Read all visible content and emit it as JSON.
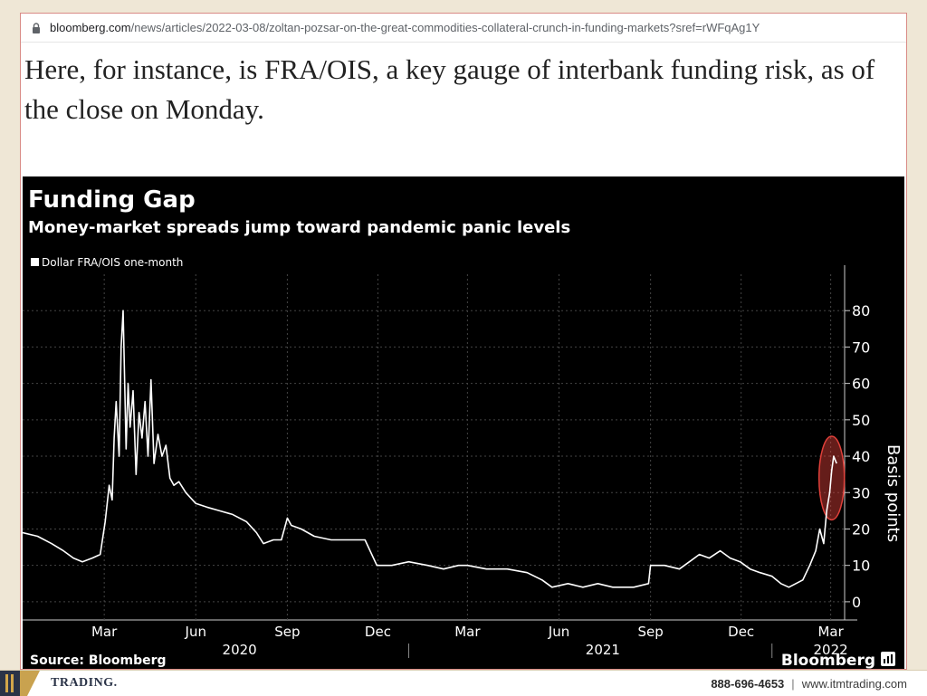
{
  "browser": {
    "url_host": "bloomberg.com",
    "url_path": "/news/articles/2022-03-08/zoltan-pozsar-on-the-great-commodities-collateral-crunch-in-funding-markets?sref=rWFqAg1Y"
  },
  "article": {
    "lead_text": "Here, for instance, is FRA/OIS, a key gauge of interbank funding risk, as of the close on Monday."
  },
  "chart_data": {
    "type": "line",
    "title": "Funding Gap",
    "subtitle": "Money-market spreads jump toward pandemic panic levels",
    "legend": [
      "Dollar FRA/OIS one-month"
    ],
    "ylabel": "Basis points",
    "ylim": [
      -5,
      90
    ],
    "yticks": [
      0,
      10,
      20,
      30,
      40,
      50,
      60,
      70,
      80
    ],
    "x_tick_labels": [
      "Mar",
      "Jun",
      "Sep",
      "Dec",
      "Mar",
      "Jun",
      "Sep",
      "Dec",
      "Mar"
    ],
    "x_tick_dates": [
      "2020-03-01",
      "2020-06-01",
      "2020-09-01",
      "2020-12-01",
      "2021-03-01",
      "2021-06-01",
      "2021-09-01",
      "2021-12-01",
      "2022-03-01"
    ],
    "year_labels": [
      "2020",
      "2021",
      "2022"
    ],
    "year_label_dates": [
      "2020-07-15",
      "2021-07-15",
      "2022-03-01"
    ],
    "year_separators": [
      "2021-01-01",
      "2022-01-01"
    ],
    "xlim": [
      "2019-12-10",
      "2022-03-15"
    ],
    "source": "Source: Bloomberg",
    "brand": "Bloomberg",
    "line_color": "#ffffff",
    "highlight_color": "#e0403a",
    "highlight_range": [
      "2022-02-25",
      "2022-03-07"
    ],
    "series": [
      {
        "name": "Dollar FRA/OIS one-month",
        "points": [
          [
            "2019-12-10",
            19
          ],
          [
            "2019-12-25",
            18
          ],
          [
            "2020-01-08",
            16
          ],
          [
            "2020-01-20",
            14
          ],
          [
            "2020-01-30",
            12
          ],
          [
            "2020-02-08",
            11
          ],
          [
            "2020-02-18",
            12
          ],
          [
            "2020-02-26",
            13
          ],
          [
            "2020-03-02",
            22
          ],
          [
            "2020-03-06",
            32
          ],
          [
            "2020-03-09",
            28
          ],
          [
            "2020-03-11",
            45
          ],
          [
            "2020-03-13",
            55
          ],
          [
            "2020-03-16",
            40
          ],
          [
            "2020-03-18",
            70
          ],
          [
            "2020-03-20",
            80
          ],
          [
            "2020-03-23",
            42
          ],
          [
            "2020-03-25",
            60
          ],
          [
            "2020-03-27",
            48
          ],
          [
            "2020-03-30",
            58
          ],
          [
            "2020-04-02",
            35
          ],
          [
            "2020-04-05",
            52
          ],
          [
            "2020-04-08",
            45
          ],
          [
            "2020-04-11",
            55
          ],
          [
            "2020-04-14",
            40
          ],
          [
            "2020-04-17",
            61
          ],
          [
            "2020-04-20",
            38
          ],
          [
            "2020-04-24",
            46
          ],
          [
            "2020-04-28",
            40
          ],
          [
            "2020-05-02",
            43
          ],
          [
            "2020-05-06",
            34
          ],
          [
            "2020-05-10",
            32
          ],
          [
            "2020-05-15",
            33
          ],
          [
            "2020-05-22",
            30
          ],
          [
            "2020-06-01",
            27
          ],
          [
            "2020-06-12",
            26
          ],
          [
            "2020-06-25",
            25
          ],
          [
            "2020-07-08",
            24
          ],
          [
            "2020-07-22",
            22
          ],
          [
            "2020-08-01",
            19
          ],
          [
            "2020-08-08",
            16
          ],
          [
            "2020-08-18",
            17
          ],
          [
            "2020-08-26",
            17
          ],
          [
            "2020-09-01",
            23
          ],
          [
            "2020-09-05",
            21
          ],
          [
            "2020-09-15",
            20
          ],
          [
            "2020-09-28",
            18
          ],
          [
            "2020-10-15",
            17
          ],
          [
            "2020-11-01",
            17
          ],
          [
            "2020-11-18",
            17
          ],
          [
            "2020-11-30",
            10
          ],
          [
            "2020-12-15",
            10
          ],
          [
            "2021-01-01",
            11
          ],
          [
            "2021-01-20",
            10
          ],
          [
            "2021-02-05",
            9
          ],
          [
            "2021-02-20",
            10
          ],
          [
            "2021-03-01",
            10
          ],
          [
            "2021-03-20",
            9
          ],
          [
            "2021-04-10",
            9
          ],
          [
            "2021-04-30",
            8
          ],
          [
            "2021-05-15",
            6
          ],
          [
            "2021-05-25",
            4
          ],
          [
            "2021-06-10",
            5
          ],
          [
            "2021-06-25",
            4
          ],
          [
            "2021-07-10",
            5
          ],
          [
            "2021-07-25",
            4
          ],
          [
            "2021-08-15",
            4
          ],
          [
            "2021-08-30",
            5
          ],
          [
            "2021-09-01",
            10
          ],
          [
            "2021-09-15",
            10
          ],
          [
            "2021-09-30",
            9
          ],
          [
            "2021-10-10",
            11
          ],
          [
            "2021-10-20",
            13
          ],
          [
            "2021-10-30",
            12
          ],
          [
            "2021-11-10",
            14
          ],
          [
            "2021-11-20",
            12
          ],
          [
            "2021-11-30",
            11
          ],
          [
            "2021-12-10",
            9
          ],
          [
            "2021-12-20",
            8
          ],
          [
            "2022-01-01",
            7
          ],
          [
            "2022-01-10",
            5
          ],
          [
            "2022-01-18",
            4
          ],
          [
            "2022-01-25",
            5
          ],
          [
            "2022-02-01",
            6
          ],
          [
            "2022-02-08",
            10
          ],
          [
            "2022-02-14",
            14
          ],
          [
            "2022-02-18",
            20
          ],
          [
            "2022-02-22",
            16
          ],
          [
            "2022-02-25",
            25
          ],
          [
            "2022-02-28",
            30
          ],
          [
            "2022-03-02",
            36
          ],
          [
            "2022-03-04",
            40
          ],
          [
            "2022-03-07",
            38
          ]
        ]
      }
    ]
  },
  "footer": {
    "brand_text": "TRADING.",
    "phone": "888-696-4653",
    "separator": "|",
    "website": "www.itmtrading.com"
  }
}
